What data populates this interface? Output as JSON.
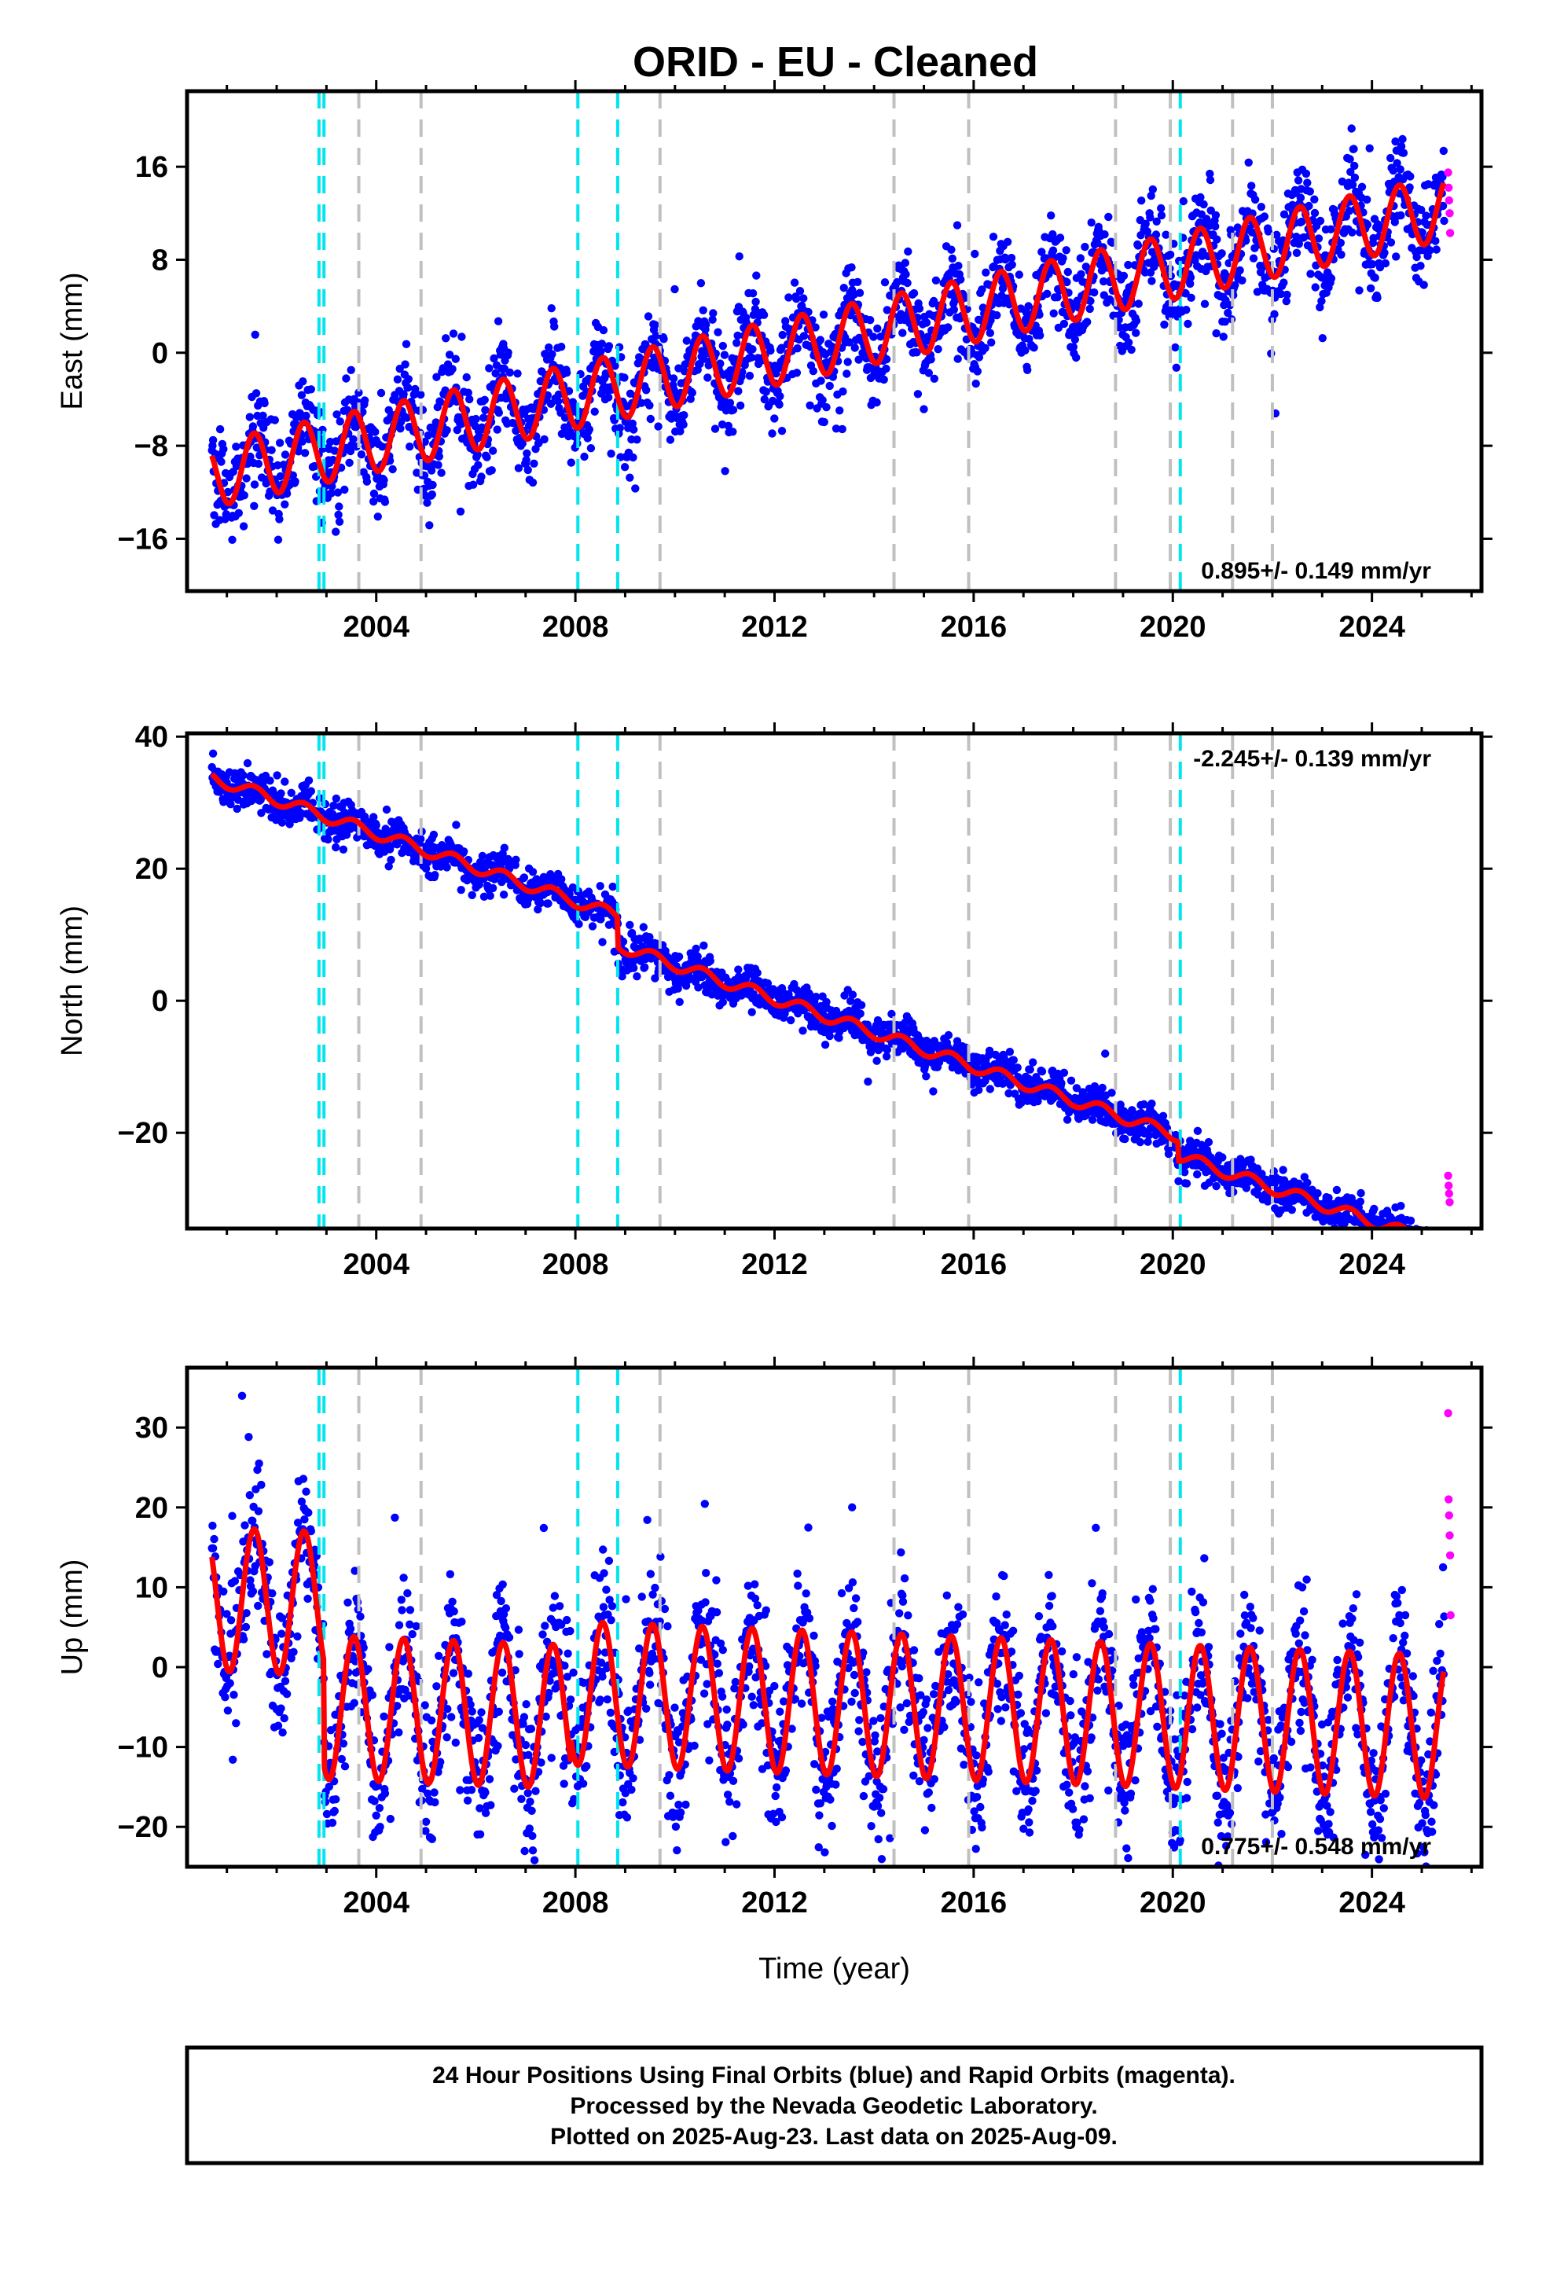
{
  "title": "ORID  - EU - Cleaned",
  "colors": {
    "final_orbits": "#0000ff",
    "rapid_orbits": "#ff00ff",
    "model_fit": "#ff0000",
    "equipment_change": "#00e5ee",
    "earthquake": "#c0c0c0"
  },
  "chart_data": [
    {
      "type": "scatter",
      "name": "east",
      "ylabel": "East (mm)",
      "xlabel": "",
      "xlim": [
        2000.2,
        2026.2
      ],
      "ylim": [
        -20.5,
        22.5
      ],
      "yticks": [
        -16,
        -8,
        0,
        8,
        16
      ],
      "xticks": [
        2004,
        2008,
        2012,
        2016,
        2020,
        2024
      ],
      "rate_label": "0.895+/- 0.149 mm/yr",
      "rate_position": "bottom-right",
      "trend": [
        [
          2000.7,
          -10.5
        ],
        [
          2025.5,
          12.5
        ]
      ],
      "offsets": [],
      "seasonal_amplitude": 2.8,
      "scatter_spread": 2.1,
      "data_start": 2000.7,
      "data_end": 2025.45,
      "rapid_values": [
        15.5,
        14.2,
        13.1,
        12.0,
        10.3
      ]
    },
    {
      "type": "scatter",
      "name": "north",
      "ylabel": "North (mm)",
      "xlabel": "",
      "xlim": [
        2000.2,
        2026.2
      ],
      "ylim": [
        -34.5,
        40.5
      ],
      "yticks": [
        -20,
        0,
        20,
        40
      ],
      "xticks": [
        2004,
        2008,
        2012,
        2016,
        2020,
        2024
      ],
      "rate_label": "-2.245+/- 0.139 mm/yr",
      "rate_position": "top-right",
      "trend": [
        [
          2000.7,
          33.8
        ],
        [
          2025.5,
          -29.8
        ]
      ],
      "offsets": [
        [
          2008.85,
          -4.5
        ],
        [
          2020.1,
          -3.0
        ]
      ],
      "seasonal_amplitude": 0.9,
      "scatter_spread": 1.4,
      "data_start": 2000.7,
      "data_end": 2025.45,
      "rapid_values": [
        -26.5,
        -28.0,
        -29.2,
        -30.5
      ]
    },
    {
      "type": "scatter",
      "name": "up",
      "ylabel": "Up (mm)",
      "xlabel": "Time (year)",
      "xlim": [
        2000.2,
        2026.2
      ],
      "ylim": [
        -25,
        37.5
      ],
      "yticks": [
        -20,
        -10,
        0,
        10,
        20,
        30
      ],
      "xticks": [
        2004,
        2008,
        2012,
        2016,
        2020,
        2024
      ],
      "rate_label": "0.775+/- 0.548 mm/yr",
      "rate_position": "bottom-right",
      "trend": [
        [
          2000.7,
          8.5
        ],
        [
          2025.5,
          2.5
        ]
      ],
      "offsets": [
        [
          2002.95,
          -13.0
        ],
        [
          2007.9,
          3.0
        ]
      ],
      "seasonal_amplitude": 9.0,
      "scatter_spread": 4.8,
      "data_start": 2000.7,
      "data_end": 2025.45,
      "rapid_values": [
        31.8,
        21.0,
        19.0,
        16.5,
        14.0,
        6.5
      ]
    }
  ],
  "equipment_changes": [
    2002.85,
    2002.95,
    2008.05,
    2008.85,
    2020.15
  ],
  "earthquakes": [
    2003.65,
    2004.9,
    2009.7,
    2014.4,
    2015.9,
    2018.85,
    2019.95,
    2021.2,
    2022.0
  ],
  "footer": {
    "line1": "24 Hour Positions Using Final Orbits (blue) and Rapid Orbits (magenta).",
    "line2": "Processed by the Nevada Geodetic Laboratory.",
    "line3": "Plotted on 2025-Aug-23. Last data on 2025-Aug-09."
  }
}
